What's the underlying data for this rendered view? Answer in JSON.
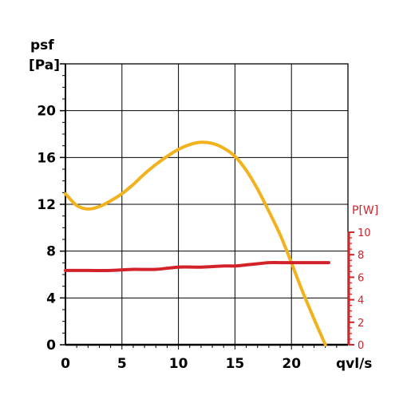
{
  "chart_data": {
    "type": "line",
    "y_axis_label": [
      "psf",
      "[Pa]"
    ],
    "x_axis_label": "qvl/s",
    "y2_axis_label": "P[W]",
    "x_ticks": [
      "0",
      "5",
      "10",
      "15",
      "20"
    ],
    "y_ticks": [
      "0",
      "4",
      "8",
      "12",
      "16",
      "20"
    ],
    "y2_ticks": [
      "0",
      "2",
      "4",
      "6",
      "8",
      "10"
    ],
    "xlim": [
      0,
      25
    ],
    "ylim": [
      0,
      24
    ],
    "y2lim": [
      0,
      10
    ],
    "grid": true,
    "colors": {
      "psf": "#f2b21d",
      "power": "#d2232a",
      "grid": "#000000"
    },
    "series": [
      {
        "axis": "left",
        "x": [
          0,
          1,
          2,
          3,
          4,
          5,
          6,
          7,
          8,
          9,
          10,
          11,
          12,
          13,
          14,
          15,
          16,
          17,
          18,
          19,
          20,
          21,
          22,
          23
        ],
        "y": [
          12.9,
          11.9,
          11.6,
          11.8,
          12.3,
          12.9,
          13.7,
          14.6,
          15.4,
          16.1,
          16.7,
          17.1,
          17.3,
          17.2,
          16.8,
          16.1,
          14.9,
          13.3,
          11.4,
          9.4,
          7.0,
          4.5,
          2.2,
          0.0
        ]
      },
      {
        "axis": "right",
        "x": [
          0,
          2,
          4,
          6,
          8,
          10,
          12,
          14,
          15,
          16,
          17,
          18,
          19,
          20,
          21,
          22,
          23.3
        ],
        "y": [
          6.6,
          6.6,
          6.6,
          6.7,
          6.7,
          6.9,
          6.9,
          7.0,
          7.0,
          7.1,
          7.2,
          7.3,
          7.3,
          7.3,
          7.3,
          7.3,
          7.3
        ]
      }
    ]
  }
}
